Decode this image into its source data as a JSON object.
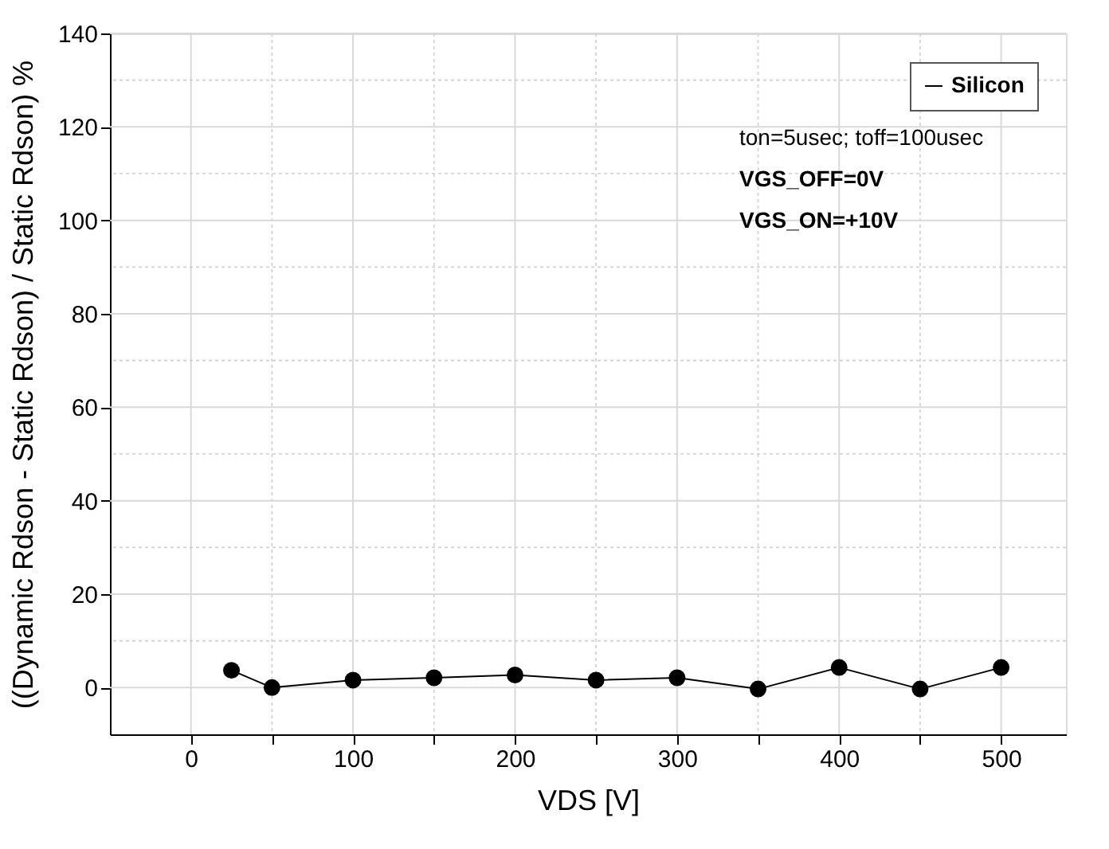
{
  "chart_data": {
    "type": "line",
    "xlabel": "VDS [V]",
    "ylabel": "((Dynamic Rdson - Static Rdson) / Static Rdson) %",
    "x": [
      25,
      50,
      100,
      150,
      200,
      250,
      300,
      350,
      400,
      450,
      500
    ],
    "series": [
      {
        "name": "Silicon",
        "color": "#000000",
        "values": [
          3.7,
          0,
          1.6,
          2.1,
          2.7,
          1.6,
          2.1,
          -0.3,
          4.3,
          -0.3,
          4.3
        ]
      }
    ],
    "xlim": [
      -50,
      540
    ],
    "xticks": [
      0,
      {
        "value": 50,
        "label": null
      },
      100,
      {
        "value": 150,
        "label": null
      },
      200,
      {
        "value": 250,
        "label": null
      },
      300,
      {
        "value": 350,
        "label": null
      },
      400,
      {
        "value": 450,
        "label": null
      },
      500
    ],
    "ylim": [
      -10,
      140
    ],
    "yticks": [
      0,
      {
        "value": 10,
        "label": null
      },
      20,
      {
        "value": 30,
        "label": null
      },
      40,
      {
        "value": 50,
        "label": null
      },
      60,
      {
        "value": 70,
        "label": null
      },
      80,
      {
        "value": 90,
        "label": null
      },
      100,
      {
        "value": 110,
        "label": null
      },
      120,
      {
        "value": 130,
        "label": null
      },
      140
    ],
    "grid": true,
    "legend": "top right",
    "marker": "circle",
    "line_style": "solid",
    "annotations": [
      "ton=5usec; toff=100usec",
      "VGS_OFF=0V",
      "VGS_ON=+10V"
    ]
  }
}
